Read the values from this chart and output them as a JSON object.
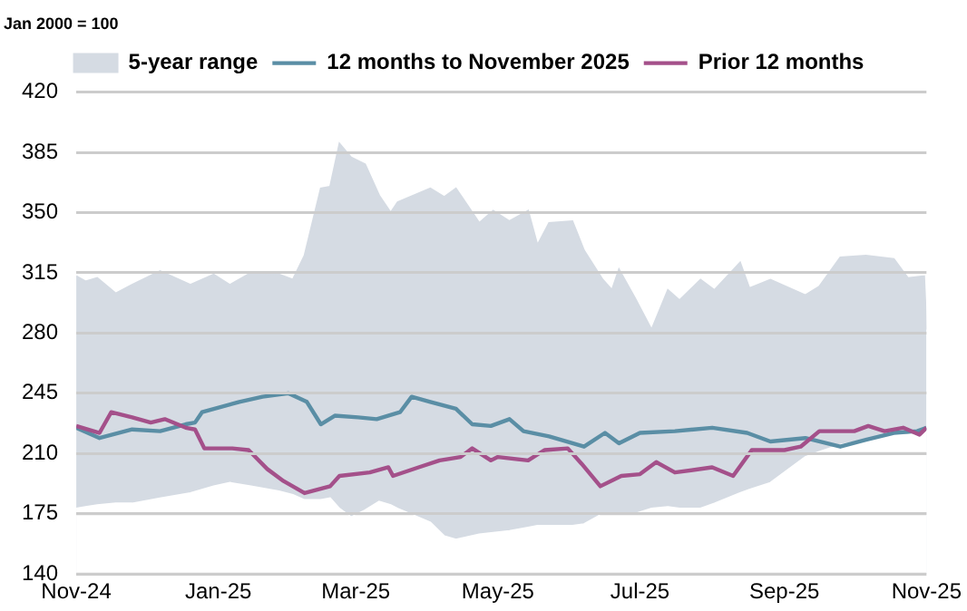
{
  "chart_data": {
    "type": "line",
    "ylabel": "Jan 2000 = 100",
    "xlim": [
      "2024-11-01",
      "2025-11-01"
    ],
    "xticks": [
      {
        "value": "2024-11-01",
        "label": "Nov-24"
      },
      {
        "value": "2025-01-01",
        "label": "Jan-25"
      },
      {
        "value": "2025-03-01",
        "label": "Mar-25"
      },
      {
        "value": "2025-05-01",
        "label": "May-25"
      },
      {
        "value": "2025-07-01",
        "label": "Jul-25"
      },
      {
        "value": "2025-09-01",
        "label": "Sep-25"
      },
      {
        "value": "2025-11-01",
        "label": "Nov-25"
      }
    ],
    "ylim": [
      140,
      420
    ],
    "yticks": [
      140,
      175,
      210,
      245,
      280,
      315,
      350,
      385,
      420
    ],
    "grid": "y",
    "legend": "top",
    "marker": "none",
    "line_style": "solid",
    "series": [
      {
        "name": "5-year range",
        "type": "area",
        "color": "#d5dbe3",
        "x": [
          "2024-11-01",
          "2024-11-05",
          "2024-11-10",
          "2024-11-18",
          "2024-11-25",
          "2024-12-07",
          "2024-12-20",
          "2024-12-30",
          "2025-01-06",
          "2025-01-15",
          "2025-01-27",
          "2025-02-02",
          "2025-02-07",
          "2025-02-14",
          "2025-02-18",
          "2025-02-22",
          "2025-02-27",
          "2025-03-05",
          "2025-03-11",
          "2025-03-16",
          "2025-03-19",
          "2025-04-02",
          "2025-04-08",
          "2025-04-13",
          "2025-04-23",
          "2025-04-29",
          "2025-05-06",
          "2025-05-14",
          "2025-05-18",
          "2025-05-23",
          "2025-06-02",
          "2025-06-07",
          "2025-06-15",
          "2025-06-19",
          "2025-06-22",
          "2025-06-29",
          "2025-07-06",
          "2025-07-13",
          "2025-07-18",
          "2025-07-27",
          "2025-08-02",
          "2025-08-13",
          "2025-08-17",
          "2025-08-26",
          "2025-09-10",
          "2025-09-16",
          "2025-09-25",
          "2025-10-06",
          "2025-10-18",
          "2025-10-24",
          "2025-10-31",
          "2025-11-01"
        ],
        "values": [
          313,
          310,
          312,
          303,
          308,
          316,
          308,
          314,
          308,
          315,
          314,
          311,
          325,
          364,
          365,
          390,
          382,
          378,
          360,
          350,
          356,
          364,
          359,
          364,
          344,
          351,
          345,
          351,
          331,
          344,
          345,
          328,
          311,
          305,
          317,
          300,
          282,
          305,
          299,
          311,
          305,
          321,
          306,
          311,
          302,
          307,
          324,
          325,
          323,
          312,
          313,
          282
        ]
      },
      {
        "type": "area",
        "color": "#ffffff",
        "x": [
          "2024-11-01",
          "2024-11-05",
          "2024-11-10",
          "2024-11-18",
          "2024-11-25",
          "2024-12-07",
          "2024-12-20",
          "2024-12-30",
          "2025-01-06",
          "2025-01-15",
          "2025-01-27",
          "2025-02-02",
          "2025-02-07",
          "2025-02-14",
          "2025-02-18",
          "2025-02-22",
          "2025-02-27",
          "2025-03-05",
          "2025-03-11",
          "2025-03-16",
          "2025-03-19",
          "2025-04-02",
          "2025-04-08",
          "2025-04-13",
          "2025-04-23",
          "2025-04-29",
          "2025-05-06",
          "2025-05-14",
          "2025-05-18",
          "2025-05-23",
          "2025-06-02",
          "2025-06-07",
          "2025-06-15",
          "2025-06-19",
          "2025-06-22",
          "2025-06-29",
          "2025-07-06",
          "2025-07-13",
          "2025-07-18",
          "2025-07-27",
          "2025-08-02",
          "2025-08-13",
          "2025-08-17",
          "2025-08-26",
          "2025-09-10",
          "2025-09-16",
          "2025-09-25",
          "2025-10-06",
          "2025-10-18",
          "2025-10-24",
          "2025-10-31",
          "2025-11-01"
        ],
        "values": [
          178,
          179,
          180,
          181,
          181,
          184,
          187,
          191,
          193,
          191,
          188,
          186,
          183,
          183,
          184,
          178,
          173,
          177,
          182,
          180,
          178,
          170,
          162,
          160,
          163,
          164,
          165,
          167,
          168,
          168,
          168,
          169,
          175,
          175,
          175,
          175,
          178,
          179,
          178,
          178,
          181,
          187,
          189,
          193,
          208,
          211,
          215,
          218,
          221,
          221,
          223,
          223
        ]
      },
      {
        "name": "12 months to November 2025",
        "type": "line",
        "color": "#5a8ea5",
        "x": [
          "2024-11-01",
          "2024-11-11",
          "2024-11-25",
          "2024-12-07",
          "2024-12-18",
          "2024-12-22",
          "2024-12-25",
          "2025-01-10",
          "2025-01-20",
          "2025-01-31",
          "2025-02-08",
          "2025-02-14",
          "2025-02-20",
          "2025-03-02",
          "2025-03-10",
          "2025-03-20",
          "2025-03-25",
          "2025-04-02",
          "2025-04-13",
          "2025-04-20",
          "2025-04-28",
          "2025-05-06",
          "2025-05-12",
          "2025-05-23",
          "2025-06-07",
          "2025-06-16",
          "2025-06-22",
          "2025-07-01",
          "2025-07-16",
          "2025-08-01",
          "2025-08-16",
          "2025-08-26",
          "2025-09-10",
          "2025-09-25",
          "2025-10-06",
          "2025-10-18",
          "2025-10-28",
          "2025-11-01"
        ],
        "values": [
          225,
          219,
          224,
          223,
          227,
          228,
          234,
          240,
          243,
          245,
          240,
          227,
          232,
          231,
          230,
          234,
          243,
          240,
          236,
          227,
          226,
          230,
          223,
          220,
          214,
          222,
          216,
          222,
          223,
          225,
          222,
          217,
          219,
          214,
          218,
          222,
          223,
          225
        ]
      },
      {
        "name": "Prior 12 months",
        "type": "line",
        "color": "#a4508a",
        "x": [
          "2024-11-01",
          "2024-11-11",
          "2024-11-16",
          "2024-11-25",
          "2024-12-03",
          "2024-12-09",
          "2024-12-18",
          "2024-12-22",
          "2024-12-26",
          "2025-01-07",
          "2025-01-14",
          "2025-01-22",
          "2025-01-29",
          "2025-02-07",
          "2025-02-18",
          "2025-02-22",
          "2025-03-07",
          "2025-03-15",
          "2025-03-17",
          "2025-03-28",
          "2025-04-06",
          "2025-04-15",
          "2025-04-20",
          "2025-04-28",
          "2025-05-01",
          "2025-05-14",
          "2025-05-21",
          "2025-05-31",
          "2025-06-06",
          "2025-06-14",
          "2025-06-23",
          "2025-07-01",
          "2025-07-08",
          "2025-07-16",
          "2025-08-01",
          "2025-08-10",
          "2025-08-18",
          "2025-09-01",
          "2025-09-08",
          "2025-09-16",
          "2025-10-01",
          "2025-10-07",
          "2025-10-14",
          "2025-10-22",
          "2025-10-29",
          "2025-11-01"
        ],
        "values": [
          226,
          222,
          234,
          231,
          228,
          230,
          225,
          224,
          213,
          213,
          212,
          201,
          194,
          187,
          191,
          197,
          199,
          202,
          197,
          202,
          206,
          208,
          213,
          206,
          208,
          206,
          212,
          213,
          204,
          191,
          197,
          198,
          205,
          199,
          202,
          197,
          212,
          212,
          214,
          223,
          223,
          226,
          223,
          225,
          221,
          225
        ]
      }
    ]
  }
}
